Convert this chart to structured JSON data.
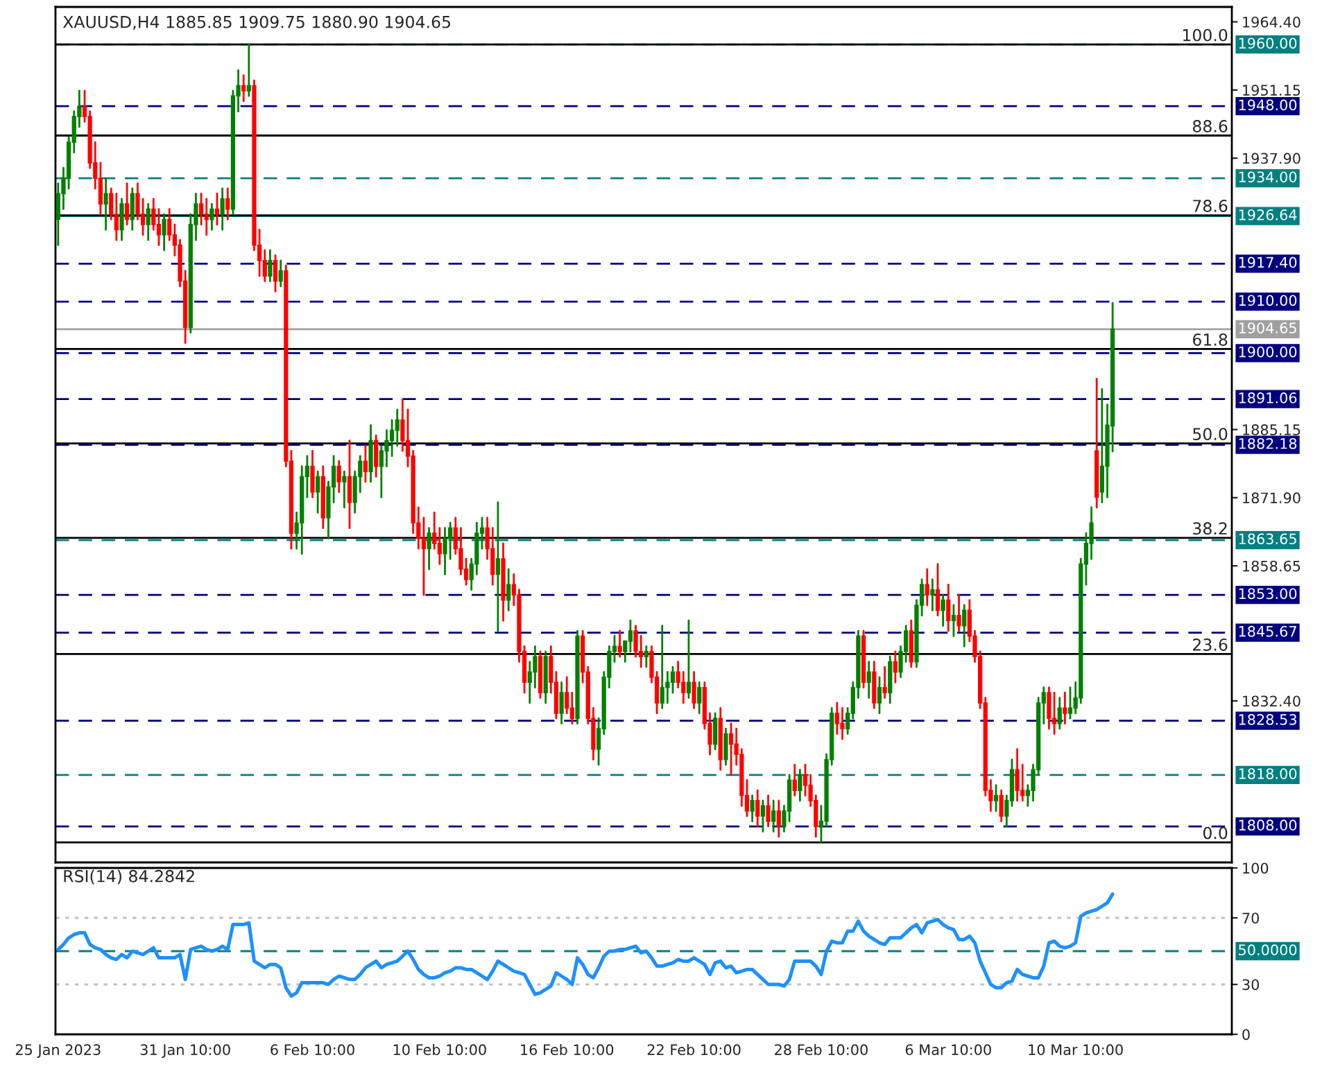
{
  "chart_data": [
    {
      "type": "candlestick",
      "title": "XAUUSD,H4 1885.85 1909.75 1880.90 1904.65",
      "tick_labels": "y",
      "categories": [
        null,
        null,
        null,
        null,
        null,
        null,
        null,
        null,
        null,
        null,
        null,
        null,
        null,
        null,
        null,
        null,
        null,
        null,
        null,
        null,
        null,
        null,
        null,
        null,
        null,
        null,
        null,
        null,
        null,
        null,
        null,
        null,
        null,
        null,
        null,
        null,
        null,
        null,
        null,
        null,
        null,
        null,
        null,
        null,
        null,
        null,
        null,
        null,
        null,
        null,
        null,
        null,
        null,
        null,
        null,
        null,
        null,
        null,
        null,
        null,
        null,
        null,
        null,
        null,
        null,
        null,
        null,
        null,
        null,
        null,
        null,
        null,
        null,
        null,
        null,
        null,
        null,
        null,
        null,
        null,
        null,
        null,
        null,
        null,
        null,
        null,
        null,
        null,
        null,
        null,
        null,
        null,
        null,
        null,
        null,
        null,
        null,
        null,
        null,
        null,
        null,
        null,
        null,
        null,
        null,
        null,
        null,
        null,
        null,
        null,
        null,
        null,
        null,
        null,
        null,
        null,
        null,
        null,
        null,
        null,
        null,
        null,
        null,
        null,
        null,
        null,
        null,
        null,
        null,
        null,
        null,
        null,
        null,
        null,
        null,
        null,
        null,
        null,
        null,
        null,
        null,
        null,
        null,
        null,
        null,
        null,
        null,
        null,
        null,
        null,
        null,
        null,
        null,
        null,
        null,
        null,
        null,
        null,
        null,
        null,
        null,
        null,
        null,
        null,
        null,
        null,
        null,
        null,
        null,
        null,
        null,
        null,
        null,
        null,
        null,
        null,
        null,
        null,
        null,
        null,
        null,
        null,
        null,
        null,
        null,
        null,
        null,
        null,
        null,
        null,
        null,
        null,
        null,
        null,
        null,
        null,
        null,
        null,
        null,
        null,
        null,
        null,
        null,
        null,
        null,
        null,
        null,
        null,
        null,
        null,
        null,
        null,
        null,
        null,
        null,
        null,
        null,
        null,
        null,
        null,
        null,
        null
      ],
      "ohlc": [
        [
          1926,
          1933,
          1921,
          1931
        ],
        [
          1931,
          1936,
          1928,
          1934
        ],
        [
          1934,
          1942,
          1932,
          1941
        ],
        [
          1941,
          1947,
          1939,
          1946
        ],
        [
          1946,
          1951,
          1944,
          1948
        ],
        [
          1948,
          1951,
          1945,
          1946
        ],
        [
          1946,
          1947,
          1936,
          1937
        ],
        [
          1937,
          1941,
          1932,
          1934
        ],
        [
          1934,
          1937,
          1927,
          1929
        ],
        [
          1929,
          1934,
          1924,
          1931
        ],
        [
          1931,
          1932,
          1926,
          1927
        ],
        [
          1927,
          1931,
          1922,
          1924
        ],
        [
          1924,
          1930,
          1922,
          1929
        ],
        [
          1929,
          1933,
          1925,
          1926
        ],
        [
          1926,
          1932,
          1924,
          1931
        ],
        [
          1931,
          1933,
          1926,
          1927
        ],
        [
          1927,
          1930,
          1923,
          1925
        ],
        [
          1925,
          1929,
          1922,
          1928
        ],
        [
          1928,
          1930,
          1924,
          1925
        ],
        [
          1925,
          1928,
          1921,
          1923
        ],
        [
          1923,
          1927,
          1920,
          1926
        ],
        [
          1926,
          1928,
          1922,
          1923
        ],
        [
          1923,
          1925,
          1919,
          1921
        ],
        [
          1921,
          1922,
          1913,
          1914
        ],
        [
          1914,
          1916,
          1902,
          1905
        ],
        [
          1905,
          1927,
          1904,
          1925
        ],
        [
          1925,
          1931,
          1922,
          1929
        ],
        [
          1929,
          1931,
          1925,
          1927
        ],
        [
          1927,
          1930,
          1923,
          1926
        ],
        [
          1926,
          1929,
          1924,
          1928
        ],
        [
          1928,
          1931,
          1925,
          1927
        ],
        [
          1927,
          1932,
          1924,
          1930
        ],
        [
          1930,
          1932,
          1926,
          1928
        ],
        [
          1928,
          1951,
          1927,
          1950
        ],
        [
          1950,
          1955,
          1947,
          1952
        ],
        [
          1952,
          1954,
          1949,
          1951
        ],
        [
          1951,
          1960,
          1950,
          1952
        ],
        [
          1952,
          1953,
          1920,
          1921
        ],
        [
          1921,
          1924,
          1915,
          1918
        ],
        [
          1918,
          1920,
          1914,
          1915
        ],
        [
          1915,
          1920,
          1914,
          1918
        ],
        [
          1918,
          1919,
          1912,
          1914
        ],
        [
          1914,
          1918,
          1913,
          1916
        ],
        [
          1916,
          1917,
          1878,
          1879
        ],
        [
          1879,
          1881,
          1862,
          1865
        ],
        [
          1865,
          1869,
          1862,
          1867
        ],
        [
          1867,
          1878,
          1861,
          1876
        ],
        [
          1876,
          1880,
          1872,
          1878
        ],
        [
          1878,
          1881,
          1872,
          1873
        ],
        [
          1873,
          1877,
          1869,
          1876
        ],
        [
          1876,
          1878,
          1866,
          1868
        ],
        [
          1868,
          1875,
          1864,
          1874
        ],
        [
          1874,
          1880,
          1871,
          1878
        ],
        [
          1878,
          1879,
          1873,
          1875
        ],
        [
          1875,
          1877,
          1870,
          1876
        ],
        [
          1876,
          1883,
          1866,
          1871
        ],
        [
          1871,
          1877,
          1869,
          1876
        ],
        [
          1876,
          1880,
          1873,
          1879
        ],
        [
          1879,
          1882,
          1875,
          1877
        ],
        [
          1877,
          1886,
          1875,
          1883
        ],
        [
          1883,
          1884,
          1876,
          1878
        ],
        [
          1878,
          1882,
          1872,
          1881
        ],
        [
          1881,
          1885,
          1878,
          1883
        ],
        [
          1883,
          1887,
          1880,
          1885
        ],
        [
          1885,
          1889,
          1882,
          1887
        ],
        [
          1887,
          1891,
          1881,
          1883
        ],
        [
          1883,
          1889,
          1878,
          1880
        ],
        [
          1880,
          1881,
          1865,
          1867
        ],
        [
          1867,
          1870,
          1862,
          1864
        ],
        [
          1864,
          1868,
          1853,
          1862
        ],
        [
          1862,
          1866,
          1858,
          1865
        ],
        [
          1865,
          1869,
          1862,
          1863
        ],
        [
          1863,
          1866,
          1859,
          1861
        ],
        [
          1861,
          1866,
          1857,
          1864
        ],
        [
          1864,
          1867,
          1860,
          1866
        ],
        [
          1866,
          1868,
          1861,
          1862
        ],
        [
          1862,
          1866,
          1857,
          1858
        ],
        [
          1858,
          1860,
          1855,
          1856
        ],
        [
          1856,
          1860,
          1854,
          1859
        ],
        [
          1859,
          1867,
          1857,
          1865
        ],
        [
          1865,
          1868,
          1862,
          1866
        ],
        [
          1866,
          1868,
          1860,
          1862
        ],
        [
          1862,
          1866,
          1855,
          1857
        ],
        [
          1857,
          1871,
          1846,
          1860
        ],
        [
          1860,
          1863,
          1848,
          1852
        ],
        [
          1852,
          1858,
          1850,
          1855
        ],
        [
          1855,
          1857,
          1851,
          1853
        ],
        [
          1853,
          1854,
          1840,
          1842
        ],
        [
          1842,
          1843,
          1834,
          1836
        ],
        [
          1836,
          1840,
          1832,
          1838
        ],
        [
          1838,
          1843,
          1835,
          1841
        ],
        [
          1841,
          1842,
          1833,
          1834
        ],
        [
          1834,
          1842,
          1832,
          1841
        ],
        [
          1841,
          1843,
          1834,
          1836
        ],
        [
          1836,
          1838,
          1829,
          1830
        ],
        [
          1830,
          1836,
          1828,
          1834
        ],
        [
          1834,
          1837,
          1830,
          1831
        ],
        [
          1831,
          1834,
          1828,
          1829
        ],
        [
          1829,
          1846,
          1828,
          1845
        ],
        [
          1845,
          1846,
          1836,
          1838
        ],
        [
          1838,
          1839,
          1828,
          1829
        ],
        [
          1829,
          1831,
          1821,
          1823
        ],
        [
          1823,
          1829,
          1820,
          1827
        ],
        [
          1827,
          1838,
          1826,
          1837
        ],
        [
          1837,
          1843,
          1835,
          1842
        ],
        [
          1842,
          1845,
          1840,
          1843
        ],
        [
          1843,
          1846,
          1841,
          1842
        ],
        [
          1842,
          1844,
          1840,
          1844
        ],
        [
          1844,
          1848,
          1842,
          1846
        ],
        [
          1846,
          1847,
          1841,
          1842
        ],
        [
          1842,
          1845,
          1839,
          1841
        ],
        [
          1841,
          1843,
          1839,
          1842
        ],
        [
          1842,
          1843,
          1836,
          1837
        ],
        [
          1837,
          1838,
          1830,
          1832
        ],
        [
          1832,
          1847,
          1831,
          1835
        ],
        [
          1835,
          1838,
          1832,
          1836
        ],
        [
          1836,
          1839,
          1834,
          1838
        ],
        [
          1838,
          1840,
          1835,
          1836
        ],
        [
          1836,
          1838,
          1832,
          1834
        ],
        [
          1834,
          1848,
          1833,
          1836
        ],
        [
          1836,
          1838,
          1831,
          1832
        ],
        [
          1832,
          1836,
          1830,
          1835
        ],
        [
          1835,
          1836,
          1827,
          1828
        ],
        [
          1828,
          1830,
          1822,
          1824
        ],
        [
          1824,
          1830,
          1823,
          1829
        ],
        [
          1829,
          1831,
          1819,
          1821
        ],
        [
          1821,
          1827,
          1820,
          1826
        ],
        [
          1826,
          1828,
          1818,
          1824
        ],
        [
          1824,
          1827,
          1820,
          1822
        ],
        [
          1822,
          1823,
          1812,
          1814
        ],
        [
          1814,
          1817,
          1810,
          1811
        ],
        [
          1811,
          1814,
          1809,
          1813
        ],
        [
          1813,
          1815,
          1808,
          1810
        ],
        [
          1810,
          1813,
          1807,
          1812
        ],
        [
          1812,
          1814,
          1808,
          1809
        ],
        [
          1809,
          1813,
          1807,
          1811
        ],
        [
          1811,
          1813,
          1806,
          1808
        ],
        [
          1808,
          1812,
          1807,
          1811
        ],
        [
          1811,
          1818,
          1809,
          1817
        ],
        [
          1817,
          1820,
          1814,
          1815
        ],
        [
          1815,
          1819,
          1813,
          1818
        ],
        [
          1818,
          1820,
          1814,
          1816
        ],
        [
          1816,
          1818,
          1812,
          1813
        ],
        [
          1813,
          1814,
          1806,
          1808
        ],
        [
          1808,
          1812,
          1805,
          1809
        ],
        [
          1809,
          1822,
          1808,
          1821
        ],
        [
          1821,
          1831,
          1820,
          1830
        ],
        [
          1830,
          1832,
          1826,
          1828
        ],
        [
          1828,
          1831,
          1825,
          1827
        ],
        [
          1827,
          1831,
          1826,
          1830
        ],
        [
          1830,
          1836,
          1829,
          1835
        ],
        [
          1835,
          1846,
          1833,
          1845
        ],
        [
          1845,
          1846,
          1835,
          1836
        ],
        [
          1836,
          1840,
          1833,
          1838
        ],
        [
          1838,
          1840,
          1831,
          1832
        ],
        [
          1832,
          1837,
          1830,
          1835
        ],
        [
          1835,
          1839,
          1833,
          1834
        ],
        [
          1834,
          1841,
          1832,
          1840
        ],
        [
          1840,
          1842,
          1836,
          1838
        ],
        [
          1838,
          1843,
          1837,
          1842
        ],
        [
          1842,
          1847,
          1840,
          1846
        ],
        [
          1846,
          1848,
          1839,
          1840
        ],
        [
          1840,
          1852,
          1839,
          1851
        ],
        [
          1851,
          1856,
          1849,
          1855
        ],
        [
          1855,
          1858,
          1851,
          1853
        ],
        [
          1853,
          1856,
          1850,
          1854
        ],
        [
          1854,
          1859,
          1849,
          1850
        ],
        [
          1850,
          1853,
          1847,
          1852
        ],
        [
          1852,
          1855,
          1846,
          1848
        ],
        [
          1848,
          1851,
          1845,
          1849
        ],
        [
          1849,
          1853,
          1846,
          1847
        ],
        [
          1847,
          1851,
          1843,
          1850
        ],
        [
          1850,
          1852,
          1844,
          1845
        ],
        [
          1845,
          1846,
          1840,
          1841
        ],
        [
          1841,
          1842,
          1831,
          1832
        ],
        [
          1832,
          1833,
          1814,
          1815
        ],
        [
          1815,
          1817,
          1811,
          1813
        ],
        [
          1813,
          1816,
          1811,
          1814
        ],
        [
          1814,
          1815,
          1809,
          1810
        ],
        [
          1810,
          1814,
          1808,
          1813
        ],
        [
          1813,
          1821,
          1812,
          1819
        ],
        [
          1819,
          1823,
          1813,
          1815
        ],
        [
          1815,
          1820,
          1813,
          1814
        ],
        [
          1814,
          1816,
          1812,
          1815
        ],
        [
          1815,
          1820,
          1813,
          1819
        ],
        [
          1819,
          1833,
          1818,
          1832
        ],
        [
          1832,
          1835,
          1828,
          1834
        ],
        [
          1834,
          1835,
          1827,
          1829
        ],
        [
          1829,
          1834,
          1826,
          1828
        ],
        [
          1828,
          1833,
          1827,
          1831
        ],
        [
          1831,
          1834,
          1828,
          1830
        ],
        [
          1830,
          1835,
          1829,
          1831
        ],
        [
          1831,
          1836,
          1830,
          1833
        ],
        [
          1833,
          1860,
          1832,
          1859
        ],
        [
          1859,
          1865,
          1855,
          1863
        ],
        [
          1863,
          1870,
          1860,
          1867
        ],
        [
          1881,
          1895,
          1870,
          1872
        ],
        [
          1873,
          1893,
          1871,
          1878
        ],
        [
          1878,
          1890,
          1872,
          1886
        ],
        [
          1885.85,
          1909.75,
          1880.9,
          1904.65
        ],
        null,
        null,
        null,
        null,
        null,
        null,
        null,
        null,
        null,
        null,
        null,
        null,
        null,
        null,
        null,
        null,
        null,
        null,
        null,
        null,
        null,
        null
      ],
      "ylim": [
        1801,
        1967.3
      ],
      "yticks": [
        {
          "value": 1964.4,
          "label": "1964.40"
        },
        {
          "value": 1951.15,
          "label": "1951.15"
        },
        {
          "value": 1937.9,
          "label": "1937.90"
        },
        {
          "value": 1885.15,
          "label": "1885.15"
        },
        {
          "value": 1871.9,
          "label": "1871.90"
        },
        {
          "value": 1858.65,
          "label": "1858.65"
        },
        {
          "value": 1832.4,
          "label": "1832.40"
        }
      ],
      "annotations": [
        {
          "text": "100.0",
          "y": 1960
        },
        {
          "text": "88.6",
          "y": 1942.3
        },
        {
          "text": "78.6",
          "y": 1926.8
        },
        {
          "text": "61.8",
          "y": 1900.8
        },
        {
          "text": "50.0",
          "y": 1882.45
        },
        {
          "text": "38.2",
          "y": 1864.1
        },
        {
          "text": "23.6",
          "y": 1841.5
        },
        {
          "text": "0.0",
          "y": 1804.9
        }
      ],
      "ref_lines": [
        {
          "axis": "y",
          "value": 1960,
          "label": "1960.00",
          "color": "#008080",
          "line_style": "dashed"
        },
        {
          "axis": "y",
          "value": 1960,
          "color": "#000000",
          "line_style": "solid"
        },
        {
          "axis": "y",
          "value": 1948,
          "label": "1948.00",
          "color": "#000080",
          "line_style": "dashed"
        },
        {
          "axis": "y",
          "value": 1942.3,
          "color": "#000000",
          "line_style": "solid"
        },
        {
          "axis": "y",
          "value": 1934,
          "label": "1934.00",
          "color": "#008080",
          "line_style": "dashed"
        },
        {
          "axis": "y",
          "value": 1926.64,
          "label": "1926.64",
          "color": "#008080",
          "line_style": "solid"
        },
        {
          "axis": "y",
          "value": 1926.8,
          "color": "#000000",
          "line_style": "solid"
        },
        {
          "axis": "y",
          "value": 1917.4,
          "label": "1917.40",
          "color": "#000080",
          "line_style": "dashed"
        },
        {
          "axis": "y",
          "value": 1910,
          "label": "1910.00",
          "color": "#000080",
          "line_style": "dashed"
        },
        {
          "axis": "y",
          "value": 1904.65,
          "label": "1904.65",
          "color": "#a0a0a0",
          "line_style": "solid"
        },
        {
          "axis": "y",
          "value": 1900.8,
          "color": "#000000",
          "line_style": "solid"
        },
        {
          "axis": "y",
          "value": 1900,
          "label": "1900.00",
          "color": "#000080",
          "line_style": "dashed"
        },
        {
          "axis": "y",
          "value": 1891.06,
          "label": "1891.06",
          "color": "#000080",
          "line_style": "dashed"
        },
        {
          "axis": "y",
          "value": 1882.45,
          "color": "#000000",
          "line_style": "solid"
        },
        {
          "axis": "y",
          "value": 1882.18,
          "label": "1882.18",
          "color": "#000080",
          "line_style": "dashed"
        },
        {
          "axis": "y",
          "value": 1864.1,
          "color": "#000000",
          "line_style": "solid"
        },
        {
          "axis": "y",
          "value": 1863.65,
          "label": "1863.65",
          "color": "#008080",
          "line_style": "dashed"
        },
        {
          "axis": "y",
          "value": 1853,
          "label": "1853.00",
          "color": "#000080",
          "line_style": "dashed"
        },
        {
          "axis": "y",
          "value": 1845.67,
          "label": "1845.67",
          "color": "#000080",
          "line_style": "dashed"
        },
        {
          "axis": "y",
          "value": 1841.5,
          "color": "#000000",
          "line_style": "solid"
        },
        {
          "axis": "y",
          "value": 1828.53,
          "label": "1828.53",
          "color": "#000080",
          "line_style": "dashed"
        },
        {
          "axis": "y",
          "value": 1818,
          "label": "1818.00",
          "color": "#008080",
          "line_style": "dashed"
        },
        {
          "axis": "y",
          "value": 1808,
          "label": "1808.00",
          "color": "#000080",
          "line_style": "dashed"
        },
        {
          "axis": "y",
          "value": 1804.9,
          "color": "#000000",
          "line_style": "solid"
        }
      ]
    },
    {
      "type": "line",
      "title": "RSI(14) 84.2842",
      "categories": [
        "25 Jan 2023",
        null,
        null,
        null,
        null,
        null,
        null,
        null,
        null,
        null,
        null,
        null,
        null,
        null,
        null,
        null,
        null,
        null,
        null,
        null,
        null,
        null,
        null,
        null,
        "31 Jan 10:00",
        null,
        null,
        null,
        null,
        null,
        null,
        null,
        null,
        null,
        null,
        null,
        null,
        null,
        null,
        null,
        null,
        null,
        null,
        null,
        null,
        null,
        null,
        null,
        "6 Feb 10:00",
        null,
        null,
        null,
        null,
        null,
        null,
        null,
        null,
        null,
        null,
        null,
        null,
        null,
        null,
        null,
        null,
        null,
        null,
        null,
        null,
        null,
        null,
        null,
        "10 Feb 10:00",
        null,
        null,
        null,
        null,
        null,
        null,
        null,
        null,
        null,
        null,
        null,
        null,
        null,
        null,
        null,
        null,
        null,
        null,
        null,
        null,
        null,
        null,
        null,
        "16 Feb 10:00",
        null,
        null,
        null,
        null,
        null,
        null,
        null,
        null,
        null,
        null,
        null,
        null,
        null,
        null,
        null,
        null,
        null,
        null,
        null,
        null,
        null,
        null,
        null,
        "22 Feb 10:00",
        null,
        null,
        null,
        null,
        null,
        null,
        null,
        null,
        null,
        null,
        null,
        null,
        null,
        null,
        null,
        null,
        null,
        null,
        null,
        null,
        null,
        null,
        null,
        "28 Feb 10:00",
        null,
        null,
        null,
        null,
        null,
        null,
        null,
        null,
        null,
        null,
        null,
        null,
        null,
        null,
        null,
        null,
        null,
        null,
        null,
        null,
        null,
        null,
        null,
        "6 Mar 10:00",
        null,
        null,
        null,
        null,
        null,
        null,
        null,
        null,
        null,
        null,
        null,
        null,
        null,
        null,
        null,
        null,
        null,
        null,
        null,
        null,
        null,
        null,
        null,
        "10 Mar 10:00",
        null,
        null,
        null,
        null,
        null,
        null,
        null,
        null,
        null,
        null,
        null,
        null,
        null,
        null,
        null,
        null,
        null,
        null,
        null,
        null,
        null,
        null,
        null,
        null,
        null,
        null,
        null,
        null,
        null
      ],
      "series": [
        {
          "color": "#1e90ff",
          "values": [
            51,
            54,
            58,
            60,
            61,
            61,
            54,
            52,
            51,
            48,
            46,
            45,
            48,
            46,
            50,
            49,
            48,
            50,
            52,
            46,
            46,
            46,
            46,
            48,
            33,
            51,
            52,
            53,
            51,
            50,
            51,
            53,
            51,
            66,
            66,
            66,
            67,
            44,
            42,
            40,
            42,
            42,
            40,
            28,
            23,
            25,
            31,
            31,
            31,
            31,
            31,
            30,
            33,
            35,
            34,
            33,
            33,
            36,
            40,
            42,
            44,
            40,
            42,
            43,
            44,
            47,
            50,
            45,
            39,
            36,
            34,
            34,
            35,
            37,
            38,
            40,
            40,
            39,
            39,
            37,
            35,
            33,
            38,
            44,
            42,
            40,
            38,
            37,
            36,
            30,
            24,
            25,
            27,
            29,
            37,
            35,
            33,
            30,
            46,
            42,
            36,
            34,
            40,
            47,
            50,
            50,
            51,
            51,
            52,
            53,
            49,
            50,
            46,
            41,
            41,
            42,
            43,
            45,
            44,
            44,
            46,
            44,
            42,
            36,
            43,
            44,
            40,
            41,
            37,
            38,
            39,
            39,
            36,
            33,
            30,
            30,
            30,
            29,
            33,
            44,
            44,
            44,
            44,
            41,
            36,
            50,
            56,
            55,
            55,
            62,
            62,
            68,
            62,
            59,
            57,
            55,
            54,
            58,
            58,
            58,
            61,
            64,
            66,
            61,
            67,
            68,
            69,
            66,
            64,
            63,
            57,
            57,
            59,
            55,
            44,
            37,
            30,
            28,
            28,
            31,
            32,
            39,
            36,
            35,
            34,
            34,
            41,
            55,
            56,
            53,
            52,
            53,
            55,
            71,
            73,
            74,
            75,
            77,
            79,
            84.2842,
            null,
            null,
            null,
            null,
            null,
            null,
            null,
            null,
            null,
            null,
            null,
            null,
            null,
            null,
            null,
            null,
            null,
            null,
            null,
            null,
            null,
            null
          ]
        }
      ],
      "ylim": [
        0,
        100
      ],
      "yticks": [
        0,
        30,
        70,
        100
      ],
      "ref_lines": [
        {
          "axis": "y",
          "value": 70,
          "color": "#c0c0c0",
          "line_style": "dotted"
        },
        {
          "axis": "y",
          "value": 30,
          "color": "#c0c0c0",
          "line_style": "dotted"
        },
        {
          "axis": "y",
          "value": 50,
          "label": "50.0000",
          "color": "#008080",
          "line_style": "dashed"
        }
      ]
    }
  ]
}
